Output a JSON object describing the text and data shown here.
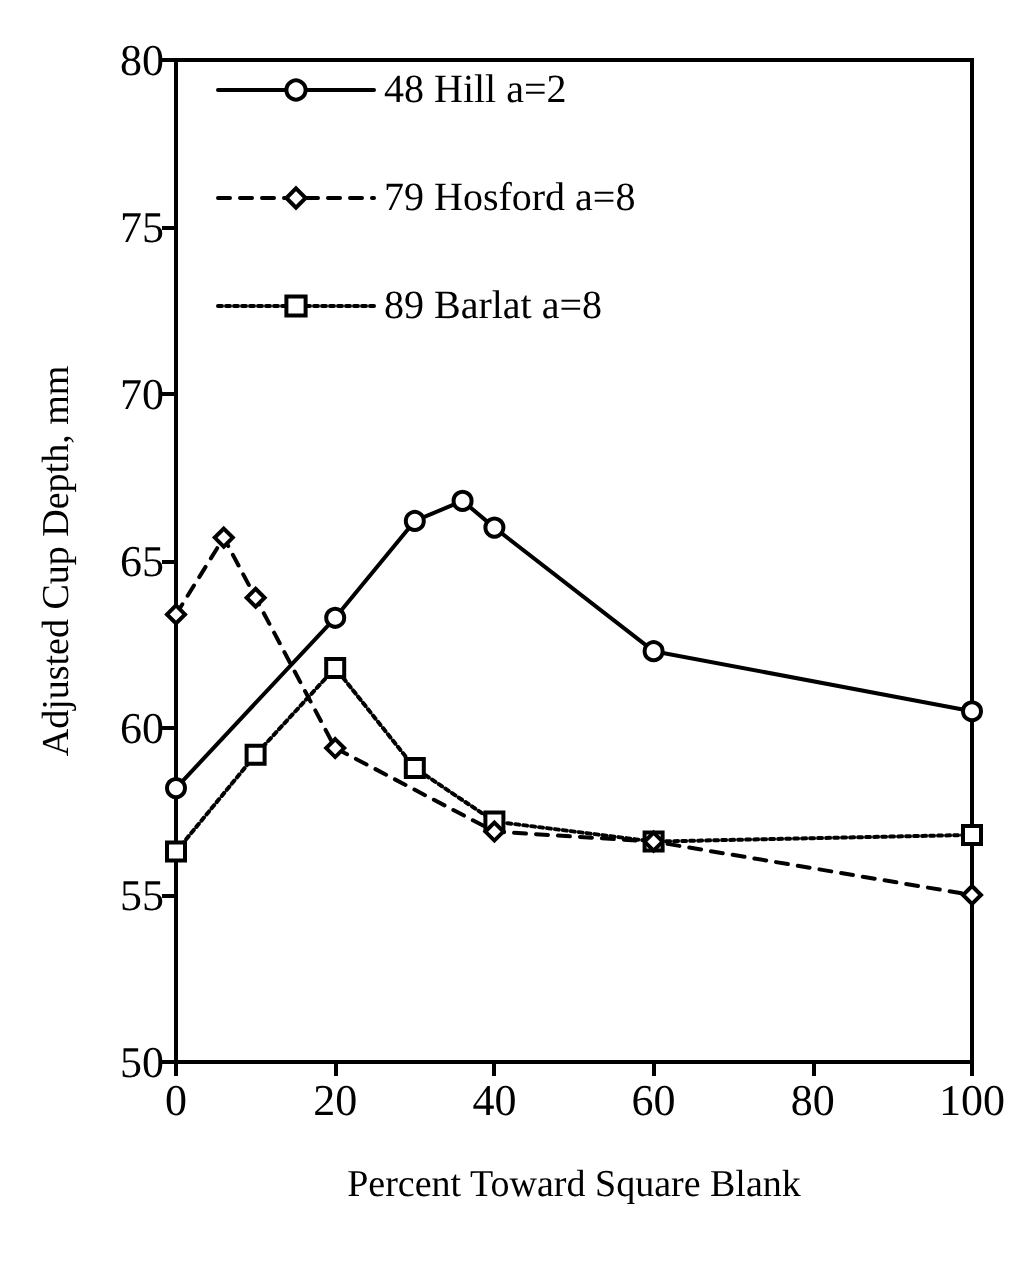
{
  "chart_data": {
    "type": "line",
    "xlabel": "Percent Toward Square Blank",
    "ylabel": "Adjusted Cup Depth, mm",
    "xlim": [
      0,
      100
    ],
    "xticks": [
      0,
      20,
      40,
      60,
      80,
      100
    ],
    "ylim": [
      50,
      80
    ],
    "yticks": [
      50,
      55,
      60,
      65,
      70,
      75,
      80
    ],
    "grid": false,
    "legend": "top left",
    "series": [
      {
        "name": "48 Hill a=2",
        "color": "#000000",
        "marker": "circle",
        "line_style": "solid",
        "x": [
          0,
          20,
          30,
          36,
          40,
          60,
          100
        ],
        "values": [
          58.2,
          63.3,
          66.2,
          66.8,
          66.0,
          62.3,
          60.5
        ]
      },
      {
        "name": "79 Hosford a=8",
        "color": "#000000",
        "marker": "diamond",
        "line_style": "dashed",
        "x": [
          0,
          6,
          10,
          20,
          40,
          60,
          100
        ],
        "values": [
          63.4,
          65.7,
          63.9,
          59.4,
          56.9,
          56.6,
          55.0
        ]
      },
      {
        "name": "89 Barlat a=8",
        "color": "#000000",
        "marker": "square",
        "line_style": "dotted",
        "x": [
          0,
          10,
          20,
          30,
          40,
          60,
          100
        ],
        "values": [
          56.3,
          59.2,
          61.8,
          58.8,
          57.2,
          56.6,
          56.8
        ]
      }
    ]
  }
}
